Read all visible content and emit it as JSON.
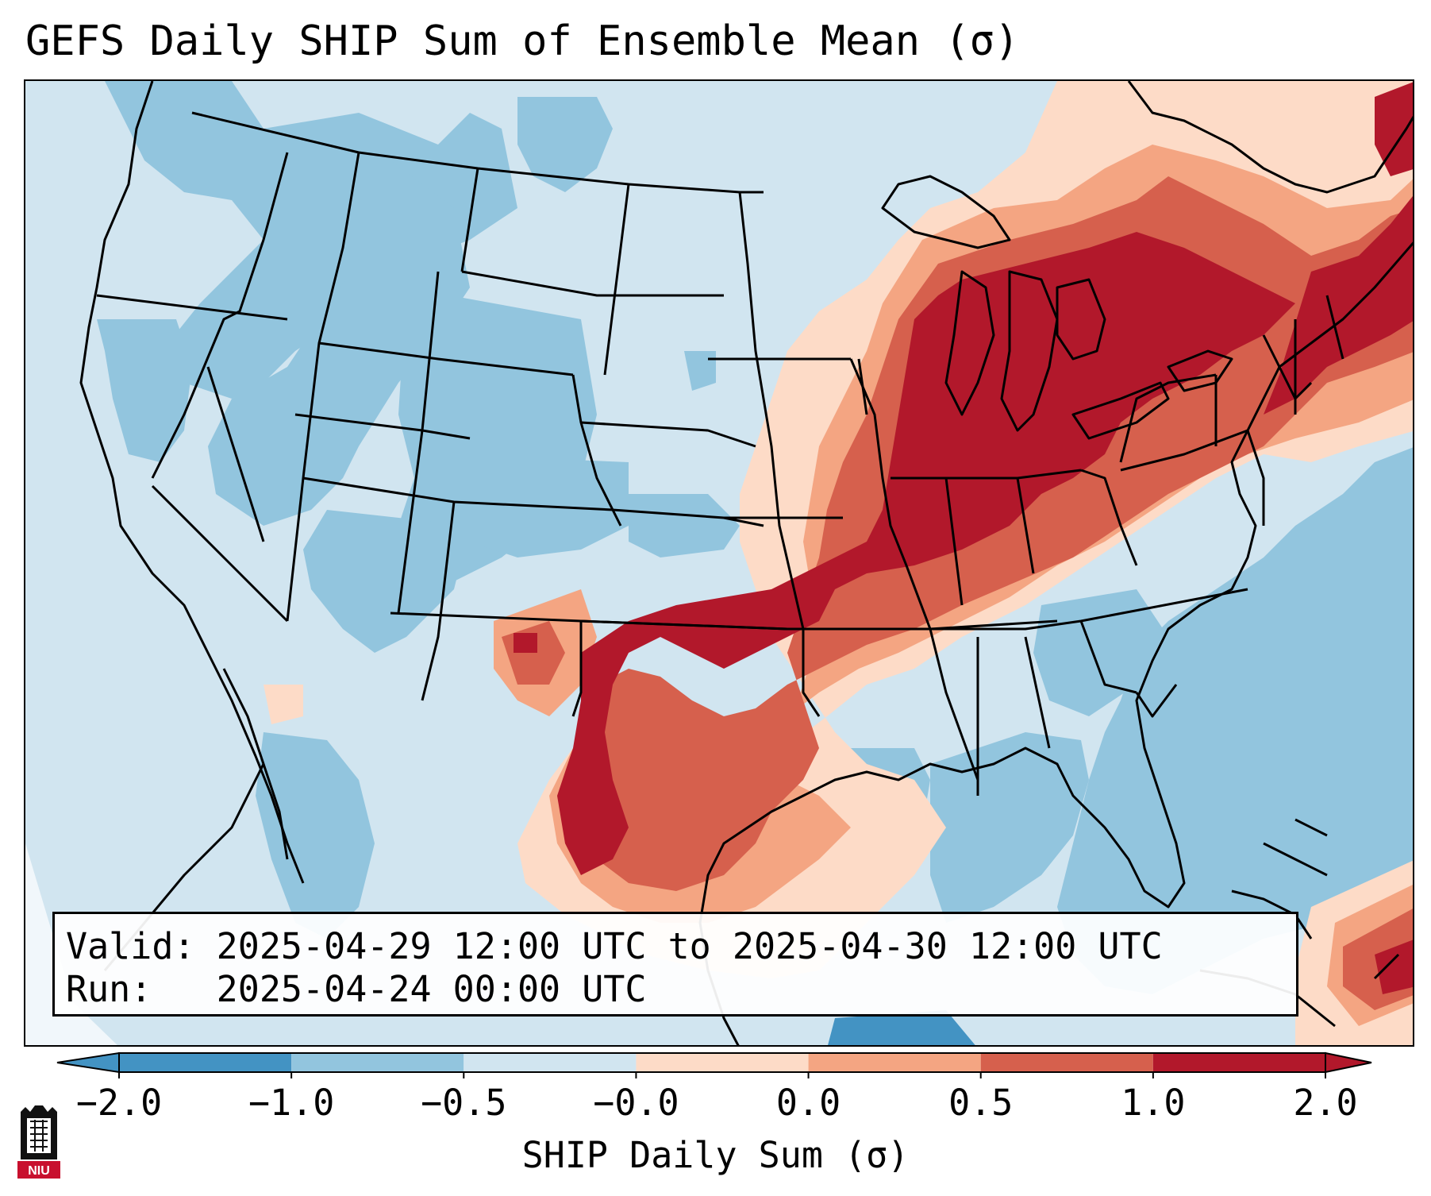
{
  "title": "GEFS Daily SHIP Sum of Ensemble Mean (σ)",
  "info_box": {
    "valid_line": "Valid: 2025-04-29 12:00 UTC to 2025-04-30 12:00 UTC",
    "run_line": "Run:   2025-04-24 00:00 UTC"
  },
  "colorbar": {
    "label": "SHIP Daily Sum (σ)",
    "ticks": [
      "−2.0",
      "−1.0",
      "−0.5",
      "−0.0",
      "0.0",
      "0.5",
      "1.0",
      "2.0"
    ],
    "colors": [
      "#4393c3",
      "#92c5de",
      "#d1e5f0",
      "#fddbc7",
      "#f4a582",
      "#d6604d",
      "#b2182b"
    ],
    "extend": "both"
  },
  "map": {
    "projection": "Lambert conformal, CONUS",
    "features": [
      "state borders",
      "coastlines",
      "Great Lakes",
      "country borders"
    ],
    "highlights": "strong positive anomalies over the Ohio Valley, Great Lakes, southern Plains and Texas; negative anomalies over the West and Gulf/Atlantic"
  },
  "logo": {
    "text": "NIU"
  },
  "legend": {}
}
